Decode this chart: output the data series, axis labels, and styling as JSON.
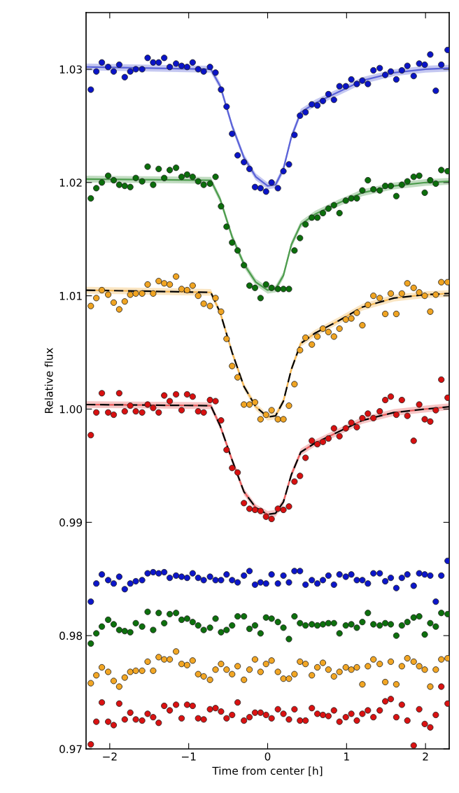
{
  "chart_data": {
    "type": "scatter",
    "xlabel": "Time from center [h]",
    "ylabel": "Relative flux",
    "xlim": [
      -2.3,
      2.3
    ],
    "ylim": [
      0.97,
      1.035
    ],
    "xticks": [
      {
        "value": -2,
        "label": "−2"
      },
      {
        "value": -1,
        "label": "−1"
      },
      0,
      1,
      2
    ],
    "yticks": [
      0.97,
      0.98,
      0.99,
      {
        "value": 1.0,
        "label": "1.00"
      },
      1.01,
      1.02,
      1.03
    ],
    "x": [
      -2.24,
      -2.17,
      -2.1,
      -2.02,
      -1.95,
      -1.88,
      -1.81,
      -1.74,
      -1.67,
      -1.59,
      -1.52,
      -1.45,
      -1.38,
      -1.31,
      -1.24,
      -1.16,
      -1.09,
      -1.02,
      -0.95,
      -0.88,
      -0.81,
      -0.73,
      -0.66,
      -0.59,
      -0.52,
      -0.45,
      -0.38,
      -0.3,
      -0.23,
      -0.16,
      -0.09,
      -0.02,
      0.05,
      0.13,
      0.2,
      0.27,
      0.34,
      0.41,
      0.48,
      0.56,
      0.63,
      0.7,
      0.77,
      0.84,
      0.91,
      0.99,
      1.06,
      1.13,
      1.2,
      1.27,
      1.34,
      1.42,
      1.49,
      1.56,
      1.63,
      1.7,
      1.77,
      1.85,
      1.92,
      1.99,
      2.06,
      2.13,
      2.2,
      2.28
    ],
    "series": [
      {
        "type": "scatter",
        "marker": "circle",
        "color": "#0a14c8",
        "values": [
          1.0282,
          1.0298,
          1.0306,
          1.0302,
          1.0298,
          1.0304,
          1.0293,
          1.0298,
          1.03,
          1.03,
          1.031,
          1.0306,
          1.0306,
          1.031,
          1.0302,
          1.0305,
          1.0303,
          1.0302,
          1.0306,
          1.03,
          1.0298,
          1.0302,
          1.0297,
          1.0282,
          1.0267,
          1.0243,
          1.0224,
          1.0218,
          1.0212,
          1.0196,
          1.0195,
          1.0192,
          1.02,
          1.0195,
          1.021,
          1.0216,
          1.0242,
          1.0259,
          1.0262,
          1.0269,
          1.0268,
          1.0272,
          1.0278,
          1.0273,
          1.0285,
          1.0285,
          1.0291,
          1.0287,
          1.029,
          1.0287,
          1.0299,
          1.0301,
          1.0295,
          1.0298,
          1.0291,
          1.0299,
          1.0303,
          1.0294,
          1.0305,
          1.0304,
          1.0313,
          1.0281,
          1.0304,
          1.0317
        ]
      },
      {
        "type": "scatter",
        "marker": "circle",
        "color": "#0b6e0b",
        "values": [
          1.0186,
          1.0195,
          1.02,
          1.0206,
          1.0202,
          1.0198,
          1.0197,
          1.0196,
          1.0204,
          1.0201,
          1.0214,
          1.0198,
          1.0212,
          1.0204,
          1.0211,
          1.0213,
          1.0205,
          1.0207,
          1.0205,
          1.0201,
          1.0198,
          1.0199,
          1.0205,
          1.0179,
          1.0161,
          1.0147,
          1.014,
          1.0127,
          1.0109,
          1.0107,
          1.0098,
          1.011,
          1.0107,
          1.0106,
          1.0106,
          1.0106,
          1.014,
          1.0151,
          1.0163,
          1.0169,
          1.0169,
          1.0173,
          1.0177,
          1.018,
          1.0173,
          1.0184,
          1.0186,
          1.0186,
          1.0193,
          1.0202,
          1.0194,
          1.0193,
          1.0197,
          1.0197,
          1.0188,
          1.0198,
          1.0201,
          1.0205,
          1.0206,
          1.0191,
          1.0202,
          1.0199,
          1.0211,
          1.021
        ]
      },
      {
        "type": "scatter",
        "marker": "circle",
        "color": "#f0a422",
        "values": [
          1.0091,
          1.0098,
          1.0105,
          1.0101,
          1.0094,
          1.0088,
          1.0095,
          1.0101,
          1.0102,
          1.0102,
          1.011,
          1.0102,
          1.0113,
          1.0111,
          1.011,
          1.0117,
          1.0106,
          1.0105,
          1.0109,
          1.01,
          1.0093,
          1.0091,
          1.0098,
          1.0086,
          1.0062,
          1.0038,
          1.0028,
          1.0004,
          1.0004,
          1.0006,
          0.9991,
          0.9995,
          0.9999,
          0.9991,
          0.9991,
          1.0003,
          1.0022,
          1.0052,
          1.0063,
          1.0057,
          1.0064,
          1.0071,
          1.0068,
          1.0064,
          1.0071,
          1.0079,
          1.008,
          1.0085,
          1.0074,
          1.0092,
          1.01,
          1.0098,
          1.0084,
          1.0102,
          1.0084,
          1.0102,
          1.0111,
          1.0107,
          1.0103,
          1.01,
          1.0086,
          1.0101,
          1.0112,
          1.0112
        ]
      },
      {
        "type": "scatter",
        "marker": "circle",
        "color": "#d81010",
        "values": [
          0.9977,
          0.9997,
          1.0014,
          0.9997,
          0.9995,
          1.0014,
          0.9998,
          1.0003,
          0.9998,
          0.9997,
          1.0004,
          1.0001,
          0.9997,
          1.0012,
          1.0007,
          1.0013,
          0.9999,
          1.0013,
          1.0011,
          0.9998,
          0.9997,
          1.0008,
          1.0007,
          0.999,
          0.9964,
          0.9948,
          0.9944,
          0.9917,
          0.9912,
          0.9911,
          0.991,
          0.9905,
          0.9903,
          0.9912,
          0.9911,
          0.9914,
          0.9936,
          0.9941,
          0.9957,
          0.9972,
          0.9969,
          0.9971,
          0.9974,
          0.9983,
          0.9976,
          0.9983,
          0.9988,
          0.9984,
          0.9992,
          0.9996,
          0.9992,
          0.9998,
          1.0008,
          1.0011,
          0.9995,
          1.0008,
          0.9994,
          0.9972,
          1.0004,
          0.9991,
          0.9989,
          0.9999,
          1.0026,
          1.001
        ]
      },
      {
        "type": "line",
        "color": "#5a62d8",
        "line_style": "solid",
        "x": [
          -2.3,
          -0.72,
          -0.6,
          -0.45,
          -0.3,
          -0.15,
          0,
          0.1,
          0.2,
          0.3,
          0.42,
          0.6,
          0.9,
          1.2,
          1.6,
          2.0,
          2.3
        ],
        "values": [
          1.0302,
          1.03,
          1.0285,
          1.025,
          1.0222,
          1.0205,
          1.0197,
          1.0198,
          1.0212,
          1.024,
          1.0262,
          1.027,
          1.028,
          1.029,
          1.0297,
          1.03,
          1.0301
        ],
        "lower": [
          1.0299,
          1.0297,
          1.0282,
          1.0247,
          1.0219,
          1.0202,
          1.0194,
          1.0195,
          1.0209,
          1.0237,
          1.0259,
          1.0267,
          1.0277,
          1.0287,
          1.0294,
          1.0297,
          1.0298
        ],
        "upper": [
          1.0305,
          1.0303,
          1.0288,
          1.0253,
          1.0225,
          1.0208,
          1.02,
          1.0201,
          1.0215,
          1.0243,
          1.0265,
          1.0273,
          1.0283,
          1.0293,
          1.03,
          1.0303,
          1.0304
        ]
      },
      {
        "type": "line",
        "color": "#4c9c4c",
        "line_style": "solid",
        "x": [
          -2.3,
          -0.72,
          -0.6,
          -0.45,
          -0.3,
          -0.15,
          0,
          0.1,
          0.2,
          0.3,
          0.42,
          0.6,
          0.9,
          1.2,
          1.6,
          2.0,
          2.3
        ],
        "values": [
          1.0203,
          1.0202,
          1.0185,
          1.0152,
          1.0128,
          1.0112,
          1.0105,
          1.0106,
          1.0118,
          1.0145,
          1.0163,
          1.0172,
          1.0182,
          1.0191,
          1.0197,
          1.02,
          1.0201
        ],
        "lower": [
          1.02,
          1.0199,
          1.0182,
          1.0149,
          1.0125,
          1.0109,
          1.0102,
          1.0103,
          1.0115,
          1.0142,
          1.016,
          1.0169,
          1.0179,
          1.0188,
          1.0194,
          1.0197,
          1.0198
        ],
        "upper": [
          1.0206,
          1.0205,
          1.0188,
          1.0155,
          1.0131,
          1.0115,
          1.0108,
          1.0109,
          1.0121,
          1.0148,
          1.0166,
          1.0175,
          1.0185,
          1.0194,
          1.02,
          1.0203,
          1.0204
        ]
      },
      {
        "type": "line",
        "color": "#f2b450",
        "line_style": "dashed",
        "x": [
          -2.3,
          -0.72,
          -0.6,
          -0.45,
          -0.3,
          -0.15,
          0,
          0.1,
          0.2,
          0.3,
          0.42,
          0.6,
          0.9,
          1.2,
          1.6,
          2.0,
          2.3
        ],
        "values": [
          1.0105,
          1.0103,
          1.0085,
          1.005,
          1.002,
          1.0002,
          0.9993,
          0.9994,
          1.0007,
          1.0035,
          1.0058,
          1.0067,
          1.0078,
          1.009,
          1.0098,
          1.0101,
          1.0102
        ],
        "lower": [
          1.0102,
          1.01,
          1.0082,
          1.0047,
          1.0017,
          0.9999,
          0.999,
          0.9991,
          1.0004,
          1.0032,
          1.0055,
          1.0064,
          1.0075,
          1.0087,
          1.0095,
          1.0098,
          1.0099
        ],
        "upper": [
          1.0108,
          1.0106,
          1.0088,
          1.0053,
          1.0023,
          1.0005,
          0.9996,
          0.9997,
          1.001,
          1.0038,
          1.0061,
          1.007,
          1.0081,
          1.0093,
          1.0101,
          1.0104,
          1.0105
        ]
      },
      {
        "type": "line",
        "color": "#e65a5a",
        "line_style": "dashed",
        "x": [
          -2.3,
          -0.72,
          -0.6,
          -0.45,
          -0.3,
          -0.15,
          0,
          0.1,
          0.2,
          0.3,
          0.42,
          0.6,
          0.9,
          1.2,
          1.6,
          2.0,
          2.3
        ],
        "values": [
          1.0004,
          1.0003,
          0.9985,
          0.9955,
          0.9927,
          0.9913,
          0.9907,
          0.9908,
          0.9918,
          0.9942,
          0.9962,
          0.997,
          0.998,
          0.999,
          0.9997,
          1.0,
          1.0002
        ],
        "lower": [
          1.0001,
          1.0,
          0.9982,
          0.9952,
          0.9924,
          0.991,
          0.9904,
          0.9905,
          0.9915,
          0.9939,
          0.9959,
          0.9967,
          0.9977,
          0.9987,
          0.9994,
          0.9997,
          0.9999
        ],
        "upper": [
          1.0007,
          1.0006,
          0.9988,
          0.9958,
          0.993,
          0.9916,
          0.991,
          0.9911,
          0.9921,
          0.9945,
          0.9965,
          0.9973,
          0.9983,
          0.9993,
          1.0,
          1.0003,
          1.0005
        ]
      },
      {
        "type": "scatter",
        "marker": "circle",
        "color": "#0c16ca",
        "values": [
          0.983,
          0.9846,
          0.9854,
          0.9849,
          0.9846,
          0.9852,
          0.9841,
          0.9846,
          0.9848,
          0.9849,
          0.9855,
          0.9856,
          0.9855,
          0.9856,
          0.9851,
          0.9853,
          0.9852,
          0.9851,
          0.9855,
          0.9851,
          0.9849,
          0.9852,
          0.9849,
          0.9849,
          0.9854,
          0.9849,
          0.9847,
          0.9853,
          0.9857,
          0.9845,
          0.9847,
          0.9846,
          0.9854,
          0.9846,
          0.9853,
          0.9847,
          0.9857,
          0.9857,
          0.9845,
          0.9849,
          0.9846,
          0.9849,
          0.9853,
          0.9845,
          0.9854,
          0.9852,
          0.9854,
          0.9849,
          0.9849,
          0.9846,
          0.9855,
          0.9855,
          0.9848,
          0.9851,
          0.9842,
          0.9851,
          0.9854,
          0.9844,
          0.9855,
          0.9854,
          0.9853,
          0.983,
          0.9853,
          0.9866
        ]
      },
      {
        "type": "scatter",
        "marker": "circle",
        "color": "#0d700d",
        "values": [
          0.9793,
          0.9802,
          0.9808,
          0.9814,
          0.981,
          0.9805,
          0.9804,
          0.9803,
          0.9811,
          0.9808,
          0.9821,
          0.9805,
          0.982,
          0.9811,
          0.9819,
          0.982,
          0.9814,
          0.9815,
          0.9812,
          0.9809,
          0.9805,
          0.9807,
          0.9815,
          0.9803,
          0.9805,
          0.9809,
          0.9817,
          0.9817,
          0.9806,
          0.9809,
          0.9802,
          0.9816,
          0.9815,
          0.9812,
          0.9807,
          0.9797,
          0.9817,
          0.9811,
          0.9809,
          0.981,
          0.9809,
          0.981,
          0.9811,
          0.9811,
          0.9802,
          0.9809,
          0.981,
          0.9807,
          0.9812,
          0.982,
          0.981,
          0.9809,
          0.9811,
          0.981,
          0.98,
          0.9809,
          0.9812,
          0.9816,
          0.9817,
          0.9801,
          0.9811,
          0.9808,
          0.982,
          0.9819
        ]
      },
      {
        "type": "scatter",
        "marker": "circle",
        "color": "#f2a624",
        "values": [
          0.9758,
          0.9765,
          0.9772,
          0.9768,
          0.976,
          0.9755,
          0.9763,
          0.9768,
          0.9769,
          0.9769,
          0.9777,
          0.9769,
          0.9781,
          0.9779,
          0.9779,
          0.9786,
          0.9775,
          0.9774,
          0.9778,
          0.9766,
          0.9764,
          0.9761,
          0.977,
          0.9775,
          0.977,
          0.9766,
          0.9773,
          0.9761,
          0.977,
          0.9779,
          0.9768,
          0.9775,
          0.9778,
          0.9768,
          0.9762,
          0.9762,
          0.9766,
          0.9777,
          0.9775,
          0.9765,
          0.9772,
          0.9776,
          0.977,
          0.9764,
          0.9768,
          0.9772,
          0.977,
          0.9772,
          0.9757,
          0.9773,
          0.9779,
          0.9775,
          0.9759,
          0.9777,
          0.9757,
          0.9773,
          0.978,
          0.9777,
          0.9773,
          0.977,
          0.9755,
          0.977,
          0.9779,
          0.978
        ]
      },
      {
        "type": "scatter",
        "marker": "circle",
        "color": "#da1212",
        "values": [
          0.9704,
          0.9724,
          0.9741,
          0.9724,
          0.9721,
          0.974,
          0.9726,
          0.9732,
          0.9726,
          0.9725,
          0.9731,
          0.9728,
          0.9723,
          0.9738,
          0.9734,
          0.9739,
          0.9727,
          0.9739,
          0.9738,
          0.9727,
          0.9726,
          0.9735,
          0.9736,
          0.9733,
          0.9727,
          0.973,
          0.9741,
          0.9725,
          0.9728,
          0.9732,
          0.9732,
          0.973,
          0.9727,
          0.9735,
          0.9731,
          0.9726,
          0.9735,
          0.9725,
          0.9725,
          0.9736,
          0.9731,
          0.973,
          0.9729,
          0.9734,
          0.9724,
          0.9728,
          0.9731,
          0.9725,
          0.9731,
          0.9734,
          0.9728,
          0.9734,
          0.9742,
          0.9744,
          0.9728,
          0.9739,
          0.9725,
          0.9703,
          0.9735,
          0.9722,
          0.9719,
          0.973,
          0.9755,
          0.974
        ]
      }
    ]
  }
}
